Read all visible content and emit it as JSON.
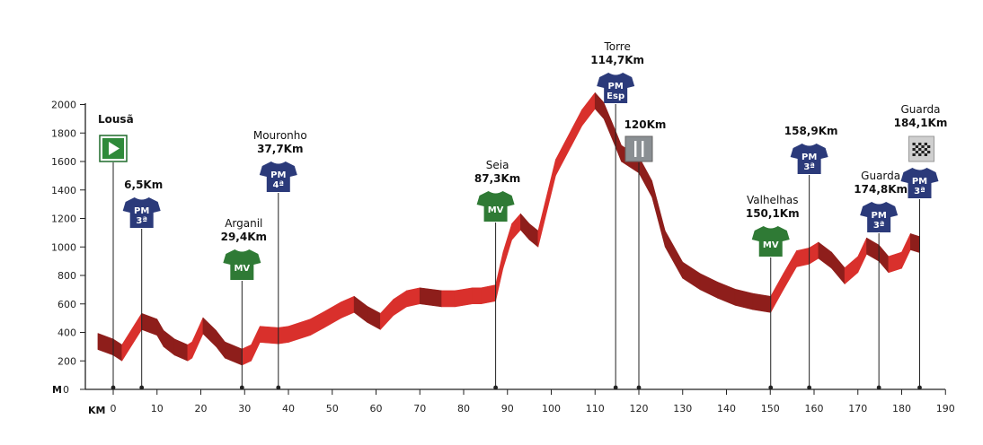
{
  "chart_data": {
    "type": "area",
    "x_unit_label": "KM",
    "y_unit_label": "M",
    "xlim": [
      0,
      190
    ],
    "ylim": [
      0,
      2000
    ],
    "x_ticks": [
      0,
      10,
      20,
      30,
      40,
      50,
      60,
      70,
      80,
      90,
      100,
      110,
      120,
      130,
      140,
      150,
      160,
      170,
      180,
      190
    ],
    "y_ticks": [
      0,
      200,
      400,
      600,
      800,
      1000,
      1200,
      1400,
      1600,
      1800,
      2000
    ],
    "grid": false,
    "profile": [
      {
        "x": -3.5,
        "y": 280
      },
      {
        "x": 0,
        "y": 240
      },
      {
        "x": 2,
        "y": 200
      },
      {
        "x": 6.5,
        "y": 420
      },
      {
        "x": 10,
        "y": 380
      },
      {
        "x": 11.5,
        "y": 300
      },
      {
        "x": 14,
        "y": 240
      },
      {
        "x": 17,
        "y": 200
      },
      {
        "x": 18,
        "y": 220
      },
      {
        "x": 20.5,
        "y": 390
      },
      {
        "x": 23.5,
        "y": 300
      },
      {
        "x": 25.5,
        "y": 220
      },
      {
        "x": 29.4,
        "y": 170
      },
      {
        "x": 31.5,
        "y": 200
      },
      {
        "x": 33.5,
        "y": 330
      },
      {
        "x": 37.7,
        "y": 320
      },
      {
        "x": 40,
        "y": 330
      },
      {
        "x": 45,
        "y": 380
      },
      {
        "x": 48,
        "y": 430
      },
      {
        "x": 52,
        "y": 500
      },
      {
        "x": 55,
        "y": 540
      },
      {
        "x": 58,
        "y": 470
      },
      {
        "x": 61,
        "y": 420
      },
      {
        "x": 64,
        "y": 520
      },
      {
        "x": 67,
        "y": 580
      },
      {
        "x": 70,
        "y": 600
      },
      {
        "x": 75,
        "y": 580
      },
      {
        "x": 78,
        "y": 580
      },
      {
        "x": 82,
        "y": 600
      },
      {
        "x": 84,
        "y": 600
      },
      {
        "x": 87.3,
        "y": 620
      },
      {
        "x": 89,
        "y": 850
      },
      {
        "x": 91,
        "y": 1050
      },
      {
        "x": 93,
        "y": 1120
      },
      {
        "x": 95,
        "y": 1050
      },
      {
        "x": 97,
        "y": 1000
      },
      {
        "x": 101,
        "y": 1500
      },
      {
        "x": 107,
        "y": 1850
      },
      {
        "x": 110,
        "y": 1970
      },
      {
        "x": 112,
        "y": 1900
      },
      {
        "x": 114.7,
        "y": 1700
      },
      {
        "x": 116,
        "y": 1600
      },
      {
        "x": 120,
        "y": 1520
      },
      {
        "x": 123,
        "y": 1350
      },
      {
        "x": 126,
        "y": 1000
      },
      {
        "x": 130,
        "y": 780
      },
      {
        "x": 134,
        "y": 700
      },
      {
        "x": 138,
        "y": 640
      },
      {
        "x": 142,
        "y": 590
      },
      {
        "x": 146,
        "y": 560
      },
      {
        "x": 150.1,
        "y": 540
      },
      {
        "x": 153,
        "y": 700
      },
      {
        "x": 156,
        "y": 860
      },
      {
        "x": 158.9,
        "y": 880
      },
      {
        "x": 161,
        "y": 920
      },
      {
        "x": 164,
        "y": 850
      },
      {
        "x": 167,
        "y": 740
      },
      {
        "x": 170,
        "y": 820
      },
      {
        "x": 172,
        "y": 950
      },
      {
        "x": 174.8,
        "y": 900
      },
      {
        "x": 177,
        "y": 820
      },
      {
        "x": 180,
        "y": 850
      },
      {
        "x": 182,
        "y": 980
      },
      {
        "x": 184.1,
        "y": 960
      }
    ],
    "markers": [
      {
        "km": 0,
        "name": "Lousã",
        "km_label": "",
        "type": "start",
        "badge": ""
      },
      {
        "km": 6.5,
        "name": "",
        "km_label": "6,5Km",
        "type": "pm",
        "badge": "PM",
        "cat": "3ª"
      },
      {
        "km": 29.4,
        "name": "Arganil",
        "km_label": "29,4Km",
        "type": "mv",
        "badge": "MV"
      },
      {
        "km": 37.7,
        "name": "Mouronho",
        "km_label": "37,7Km",
        "type": "pm",
        "badge": "PM",
        "cat": "4ª"
      },
      {
        "km": 87.3,
        "name": "Seia",
        "km_label": "87,3Km",
        "type": "mv",
        "badge": "MV"
      },
      {
        "km": 114.7,
        "name": "Torre",
        "km_label": "114,7Km",
        "type": "pm",
        "badge": "PM",
        "cat": "Esp"
      },
      {
        "km": 120,
        "name": "",
        "km_label": "120Km",
        "type": "feed",
        "badge": ""
      },
      {
        "km": 150.1,
        "name": "Valhelhas",
        "km_label": "150,1Km",
        "type": "mv",
        "badge": "MV"
      },
      {
        "km": 158.9,
        "name": "",
        "km_label": "158,9Km",
        "type": "pm",
        "badge": "PM",
        "cat": "3ª"
      },
      {
        "km": 174.8,
        "name": "Guarda",
        "km_label": "174,8Km",
        "type": "pm",
        "badge": "PM",
        "cat": "3ª"
      },
      {
        "km": 184.1,
        "name": "Guarda",
        "km_label": "184,1Km",
        "type": "finish",
        "badge": "PM",
        "cat": "3ª"
      }
    ]
  },
  "colors": {
    "profile_top": "#d9302c",
    "profile_side": "#8e1e1b",
    "pm_jersey": "#2b3a7a",
    "mv_jersey": "#2f7a35",
    "start_box": "#2f8a3a",
    "axis": "#222222"
  }
}
